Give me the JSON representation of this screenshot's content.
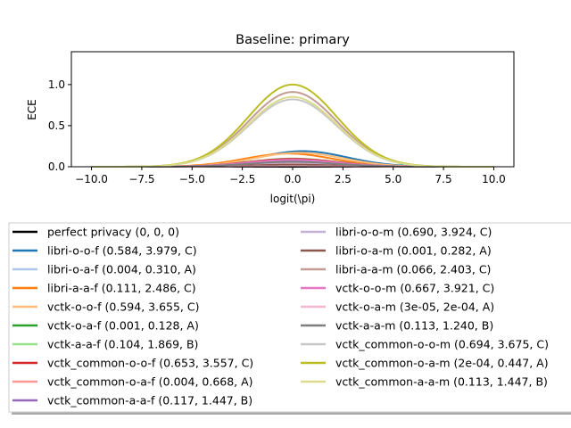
{
  "chart_data": {
    "type": "line",
    "title": "Baseline: primary",
    "xlabel": "logit(\\pi)",
    "ylabel": "ECE",
    "xlim": [
      -11,
      11
    ],
    "ylim": [
      0,
      1.4
    ],
    "x_ticks": [
      -10,
      -7.5,
      -5,
      -2.5,
      0,
      2.5,
      5,
      7.5,
      10
    ],
    "x_tick_labels": [
      "−10.0",
      "−7.5",
      "−5.0",
      "−2.5",
      "0.0",
      "2.5",
      "5.0",
      "7.5",
      "10.0"
    ],
    "y_ticks": [
      0,
      0.5,
      1
    ],
    "y_tick_labels": [
      "0.0",
      "0.5",
      "1.0"
    ],
    "grid": false,
    "legend_placement": "below-plot",
    "legend_columns": 2,
    "curve_shape": "bell peaked near x=0, decaying to 0 by |x|≈7.5",
    "series": [
      {
        "name": "perfect privacy (0, 0, 0)",
        "color": "#000000",
        "peak_x": 0,
        "peak_y": 0,
        "width": 2.2
      },
      {
        "name": "libri-o-o-f (0.584, 3.979, C)",
        "color": "#1f77b4",
        "peak_x": 0.5,
        "peak_y": 0.19,
        "width": 2.2
      },
      {
        "name": "libri-o-a-f (0.004, 0.310, A)",
        "color": "#aec7e8",
        "peak_x": 0,
        "peak_y": 0.03,
        "width": 2.2
      },
      {
        "name": "libri-a-a-f (0.111, 2.486, C)",
        "color": "#ff7f0e",
        "peak_x": -0.2,
        "peak_y": 0.16,
        "width": 2.2
      },
      {
        "name": "vctk-o-o-f (0.594, 3.655, C)",
        "color": "#ffbb78",
        "peak_x": 0.3,
        "peak_y": 0.17,
        "width": 2.2
      },
      {
        "name": "vctk-o-a-f (0.001, 0.128, A)",
        "color": "#2ca02c",
        "peak_x": 0,
        "peak_y": 0.012,
        "width": 2.2
      },
      {
        "name": "vctk-a-a-f (0.104, 1.869, B)",
        "color": "#98df8a",
        "peak_x": 0,
        "peak_y": 0.1,
        "width": 2.2
      },
      {
        "name": "vctk_common-o-o-f (0.653, 3.557, C)",
        "color": "#d62728",
        "peak_x": 0,
        "peak_y": 0.095,
        "width": 2.2
      },
      {
        "name": "vctk_common-o-a-f (0.004, 0.668, A)",
        "color": "#ff9896",
        "peak_x": 0,
        "peak_y": 0.04,
        "width": 2.2
      },
      {
        "name": "vctk_common-a-a-f (0.117, 1.447, B)",
        "color": "#9467bd",
        "peak_x": 0,
        "peak_y": 0.07,
        "width": 2.2
      },
      {
        "name": "libri-o-o-m (0.690, 3.924, C)",
        "color": "#c5b0d5",
        "peak_x": 0,
        "peak_y": 0.05,
        "width": 2.2
      },
      {
        "name": "libri-o-a-m (0.001, 0.282, A)",
        "color": "#8c564b",
        "peak_x": 0,
        "peak_y": 0.025,
        "width": 2.2
      },
      {
        "name": "libri-a-a-m (0.066, 2.403, C)",
        "color": "#c49c94",
        "peak_x": 0,
        "peak_y": 0.91,
        "width": 2.2
      },
      {
        "name": "vctk-o-o-m (0.667, 3.921, C)",
        "color": "#e377c2",
        "peak_x": 0,
        "peak_y": 0.085,
        "width": 2.2
      },
      {
        "name": "vctk-o-a-m (3e-05, 2e-04, A)",
        "color": "#f7b6d2",
        "peak_x": 0,
        "peak_y": 0.005,
        "width": 2.2
      },
      {
        "name": "vctk-a-a-m (0.113, 1.240, B)",
        "color": "#7f7f7f",
        "peak_x": 0,
        "peak_y": 0.06,
        "width": 2.2
      },
      {
        "name": "vctk_common-o-o-m (0.694, 3.675, C)",
        "color": "#c7c7c7",
        "peak_x": 0,
        "peak_y": 0.82,
        "width": 2.2
      },
      {
        "name": "vctk_common-o-a-m (2e-04, 0.447, A)",
        "color": "#bcbd22",
        "peak_x": 0,
        "peak_y": 1.0,
        "width": 2.2
      },
      {
        "name": "vctk_common-a-a-m (0.113, 1.447, B)",
        "color": "#dbdb8d",
        "peak_x": 0,
        "peak_y": 0.85,
        "width": 2.2
      }
    ]
  }
}
